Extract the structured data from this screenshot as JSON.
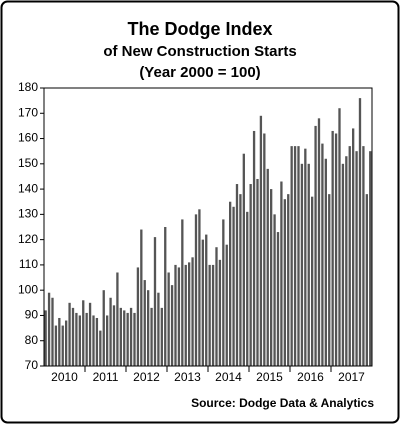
{
  "chart_data": {
    "type": "bar",
    "title": "The Dodge Index",
    "subtitle": [
      "of New Construction Starts",
      "(Year 2000 = 100)"
    ],
    "source": "Source:  Dodge Data & Analytics",
    "categories": [
      "2010",
      "2011",
      "2012",
      "2013",
      "2014",
      "2015",
      "2016",
      "2017"
    ],
    "values": [
      [
        92,
        99,
        97,
        86,
        89,
        86,
        88,
        95,
        93,
        91,
        90,
        96
      ],
      [
        91,
        95,
        90,
        89,
        84,
        100,
        90,
        97,
        94,
        107,
        93,
        92
      ],
      [
        91,
        93,
        91,
        109,
        124,
        104,
        100,
        93,
        121,
        99,
        93,
        125
      ],
      [
        107,
        102,
        110,
        109,
        128,
        110,
        111,
        113,
        130,
        132,
        120,
        122
      ],
      [
        110,
        110,
        117,
        112,
        128,
        118,
        135,
        133,
        142,
        138,
        154,
        131
      ],
      [
        142,
        163,
        144,
        169,
        162,
        148,
        140,
        130,
        123,
        143,
        136,
        138
      ],
      [
        157,
        157,
        157,
        150,
        156,
        150,
        137,
        165,
        168,
        158,
        152,
        138
      ],
      [
        163,
        162,
        172,
        150,
        153,
        157,
        164,
        155,
        176,
        157,
        138,
        155
      ]
    ],
    "color": "#555555",
    "ylim": [
      70,
      180
    ],
    "yticks": [
      70,
      80,
      90,
      100,
      110,
      120,
      130,
      140,
      150,
      160,
      170,
      180
    ]
  }
}
